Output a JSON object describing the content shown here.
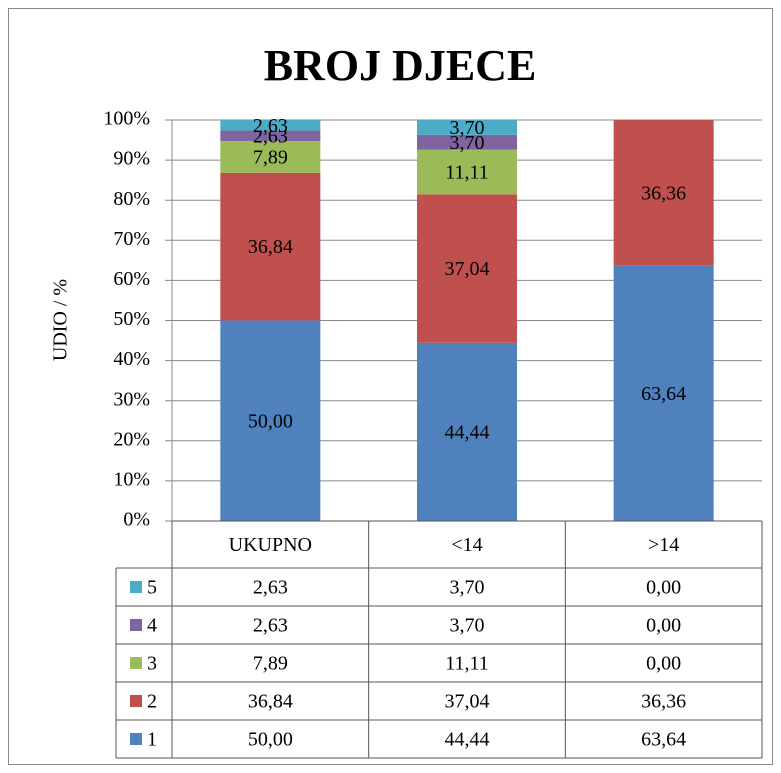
{
  "chart_data": {
    "type": "bar",
    "stacked": true,
    "title": "BROJ DJECE",
    "y_label": "UDIO  / %",
    "categories": [
      "UKUPNO",
      "<14",
      ">14"
    ],
    "series": [
      {
        "name": "1",
        "color": "#4f81bd",
        "values": [
          50.0,
          44.44,
          63.64
        ],
        "value_labels": [
          "50,00",
          "44,44",
          "63,64"
        ]
      },
      {
        "name": "2",
        "color": "#c0504d",
        "values": [
          36.84,
          37.04,
          36.36
        ],
        "value_labels": [
          "36,84",
          "37,04",
          "36,36"
        ]
      },
      {
        "name": "3",
        "color": "#9bbb59",
        "values": [
          7.89,
          11.11,
          0
        ],
        "value_labels": [
          "7,89",
          "11,11",
          "0,00"
        ]
      },
      {
        "name": "4",
        "color": "#8064a2",
        "values": [
          2.63,
          3.7,
          0
        ],
        "value_labels": [
          "2,63",
          "3,70",
          "0,00"
        ]
      },
      {
        "name": "5",
        "color": "#4bacc6",
        "values": [
          2.63,
          3.7,
          0
        ],
        "value_labels": [
          "2,63",
          "3,70",
          "0,00"
        ]
      }
    ],
    "ylim": [
      0,
      100
    ],
    "yticks": [
      {
        "value": 0,
        "label": "0%"
      },
      {
        "value": 10,
        "label": "10%"
      },
      {
        "value": 20,
        "label": "20%"
      },
      {
        "value": 30,
        "label": "30%"
      },
      {
        "value": 40,
        "label": "40%"
      },
      {
        "value": 50,
        "label": "50%"
      },
      {
        "value": 60,
        "label": "60%"
      },
      {
        "value": 70,
        "label": "70%"
      },
      {
        "value": 80,
        "label": "80%"
      },
      {
        "value": 90,
        "label": "90%"
      },
      {
        "value": 100,
        "label": "100%"
      }
    ],
    "grid": true,
    "data_table": true
  }
}
